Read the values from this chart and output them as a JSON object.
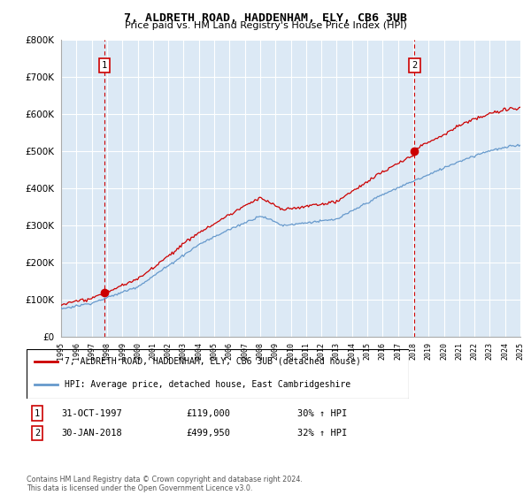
{
  "title": "7, ALDRETH ROAD, HADDENHAM, ELY, CB6 3UB",
  "subtitle": "Price paid vs. HM Land Registry's House Price Index (HPI)",
  "legend_line1": "7, ALDRETH ROAD, HADDENHAM, ELY, CB6 3UB (detached house)",
  "legend_line2": "HPI: Average price, detached house, East Cambridgeshire",
  "footer": "Contains HM Land Registry data © Crown copyright and database right 2024.\nThis data is licensed under the Open Government Licence v3.0.",
  "sale1_date": "31-OCT-1997",
  "sale1_price": "£119,000",
  "sale1_hpi": "30% ↑ HPI",
  "sale2_date": "30-JAN-2018",
  "sale2_price": "£499,950",
  "sale2_hpi": "32% ↑ HPI",
  "ylim": [
    0,
    800000
  ],
  "yticks": [
    0,
    100000,
    200000,
    300000,
    400000,
    500000,
    600000,
    700000,
    800000
  ],
  "plot_bg": "#dce9f5",
  "red_line_color": "#cc0000",
  "blue_line_color": "#6699cc",
  "vline_color": "#cc0000",
  "marker1_x": 1997.83,
  "marker1_y": 119000,
  "marker2_x": 2018.08,
  "marker2_y": 499950,
  "xmin": 1995,
  "xmax": 2025
}
